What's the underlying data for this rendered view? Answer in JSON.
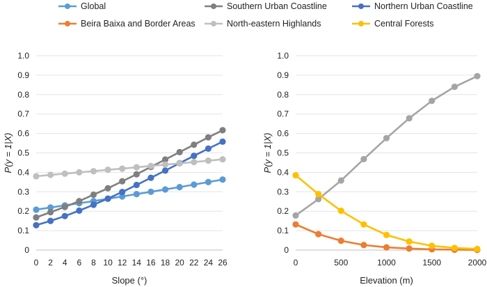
{
  "chart_data": [
    {
      "type": "line",
      "xlabel": "Slope (°)",
      "ylabel": "P(y = 1|X)",
      "ylim": [
        0,
        1.0
      ],
      "x": [
        0,
        2,
        4,
        6,
        8,
        10,
        12,
        14,
        16,
        18,
        20,
        22,
        24,
        26
      ],
      "x_ticks": [
        "0",
        "2",
        "4",
        "6",
        "8",
        "10",
        "12",
        "14",
        "16",
        "18",
        "20",
        "22",
        "24",
        "26"
      ],
      "y_ticks": [
        "0",
        "0.1",
        "0.2",
        "0.3",
        "0.4",
        "0.5",
        "0.6",
        "0.7",
        "0.8",
        "0.9",
        "1.0"
      ],
      "grid": true,
      "series": [
        {
          "name": "Global",
          "color": "#5b9bd5",
          "values": [
            0.208,
            0.219,
            0.23,
            0.241,
            0.252,
            0.264,
            0.276,
            0.288,
            0.3,
            0.312,
            0.324,
            0.337,
            0.35,
            0.363
          ]
        },
        {
          "name": "Southern Urban Coastline",
          "color": "#7f7f7f",
          "values": [
            0.168,
            0.195,
            0.222,
            0.252,
            0.285,
            0.318,
            0.354,
            0.39,
            0.428,
            0.466,
            0.504,
            0.542,
            0.58,
            0.617
          ]
        },
        {
          "name": "Northern Urban Coastline",
          "color": "#4472c4",
          "values": [
            0.128,
            0.15,
            0.175,
            0.203,
            0.233,
            0.265,
            0.299,
            0.335,
            0.372,
            0.409,
            0.447,
            0.485,
            0.522,
            0.558
          ]
        },
        {
          "name": "North-eastern Highlands",
          "color": "#bfbfbf",
          "values": [
            0.38,
            0.387,
            0.393,
            0.4,
            0.406,
            0.413,
            0.419,
            0.426,
            0.433,
            0.44,
            0.446,
            0.453,
            0.46,
            0.467
          ]
        }
      ]
    },
    {
      "type": "line",
      "xlabel": "Elevation (m)",
      "ylabel": "P(y = 1|X)",
      "ylim": [
        0,
        1.0
      ],
      "x": [
        0,
        250,
        500,
        750,
        1000,
        1250,
        1500,
        1750,
        2000
      ],
      "x_ticks": [
        "0",
        "500",
        "1000",
        "1500",
        "2000"
      ],
      "y_ticks": [
        "0",
        "0.1",
        "0.2",
        "0.3",
        "0.4",
        "0.5",
        "0.6",
        "0.7",
        "0.8",
        "0.9",
        "1.0"
      ],
      "grid": true,
      "series": [
        {
          "name": "Southern Urban Coastline",
          "color": "#a5a5a5",
          "values": [
            0.178,
            0.262,
            0.358,
            0.468,
            0.576,
            0.678,
            0.768,
            0.84,
            0.895
          ]
        },
        {
          "name": "Beira Baixa and Border Areas",
          "color": "#ed7d31",
          "values": [
            0.132,
            0.082,
            0.048,
            0.026,
            0.014,
            0.008,
            0.004,
            0.002,
            0.001
          ]
        },
        {
          "name": "Central Forests",
          "color": "#ffc000",
          "values": [
            0.385,
            0.288,
            0.202,
            0.132,
            0.078,
            0.044,
            0.022,
            0.011,
            0.006
          ]
        }
      ]
    }
  ],
  "legend": [
    {
      "label": "Global",
      "color": "#5b9bd5"
    },
    {
      "label": "Southern Urban Coastline",
      "color": "#7f7f7f"
    },
    {
      "label": "Northern Urban Coastline",
      "color": "#4472c4"
    },
    {
      "label": "Beira Baixa and Border Areas",
      "color": "#ed7d31"
    },
    {
      "label": "North-eastern Highlands",
      "color": "#bfbfbf"
    },
    {
      "label": "Central Forests",
      "color": "#ffc000"
    }
  ]
}
